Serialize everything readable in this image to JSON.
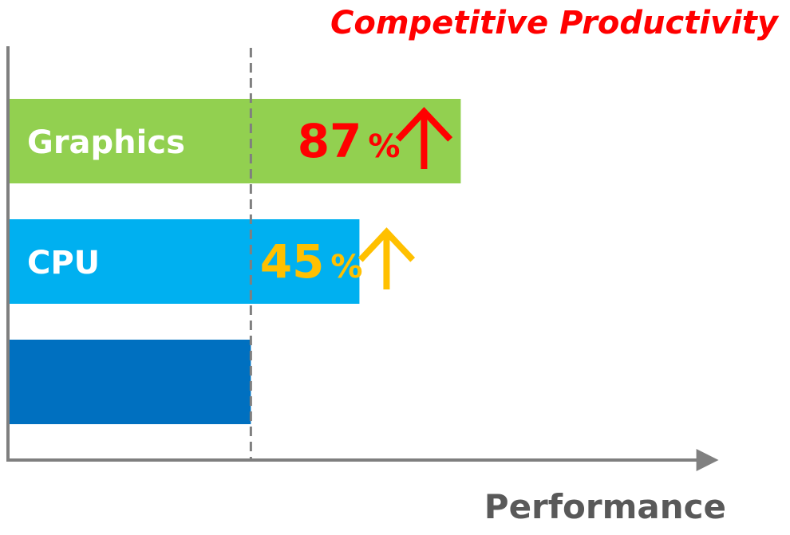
{
  "chart_data": {
    "type": "bar",
    "orientation": "horizontal",
    "title": "Competitive Productivity",
    "xlabel": "Performance",
    "baseline_index": 2,
    "bars": [
      {
        "label": "Graphics",
        "value": 187,
        "delta": "87",
        "delta_unit": "%",
        "color": "#92d050",
        "delta_color": "#ff0000"
      },
      {
        "label": "CPU",
        "value": 145,
        "delta": "45",
        "delta_unit": "%",
        "color": "#00b0f0",
        "delta_color": "#ffc000"
      },
      {
        "label": "",
        "value": 100,
        "delta": "",
        "delta_unit": "",
        "color": "#0070c0",
        "delta_color": ""
      }
    ],
    "xlim": [
      0,
      240
    ],
    "axis_color": "#7f7f7f",
    "title_color": "#ff0000",
    "xlabel_color": "#595959",
    "reference_line": {
      "value": 100,
      "style": "dashed",
      "color": "#7f7f7f"
    }
  }
}
